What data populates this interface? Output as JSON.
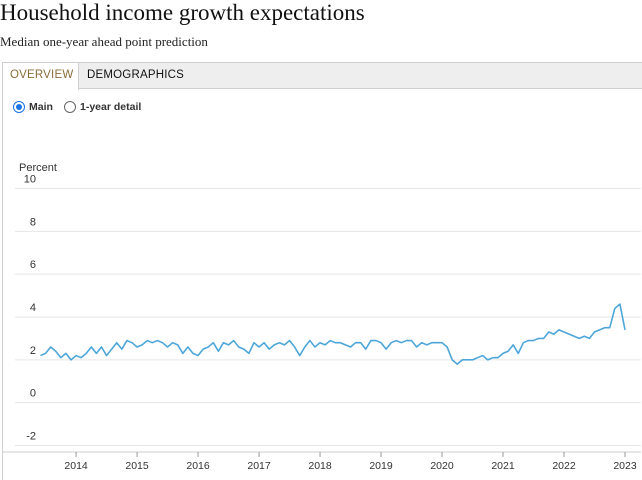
{
  "header": {
    "title": "Household income growth expectations",
    "subtitle": "Median one-year ahead point prediction"
  },
  "tabs": [
    {
      "label": "OVERVIEW"
    },
    {
      "label": "DEMOGRAPHICS"
    }
  ],
  "view_options": [
    {
      "label": "Main",
      "selected": true
    },
    {
      "label": "1-year detail",
      "selected": false
    }
  ],
  "colors": {
    "line": "#4da6d9",
    "grid": "#e6e6e6",
    "active_tab_text": "#8a6d3b",
    "radio_selected": "#1a73e8"
  },
  "chart_data": {
    "type": "line",
    "ylabel": "Percent",
    "ylim": [
      -2,
      10
    ],
    "yticks": [
      10,
      8,
      6,
      4,
      2,
      0,
      -2
    ],
    "xlim": [
      "2013-06",
      "2023-01"
    ],
    "xticks": [
      "2014",
      "2015",
      "2016",
      "2017",
      "2018",
      "2019",
      "2020",
      "2021",
      "2022",
      "2023"
    ],
    "grid": true,
    "legend": "none",
    "series": [
      {
        "x": [
          "2013-06",
          "2013-07",
          "2013-08",
          "2013-09",
          "2013-10",
          "2013-11",
          "2013-12",
          "2014-01",
          "2014-02",
          "2014-03",
          "2014-04",
          "2014-05",
          "2014-06",
          "2014-07",
          "2014-08",
          "2014-09",
          "2014-10",
          "2014-11",
          "2014-12",
          "2015-01",
          "2015-02",
          "2015-03",
          "2015-04",
          "2015-05",
          "2015-06",
          "2015-07",
          "2015-08",
          "2015-09",
          "2015-10",
          "2015-11",
          "2015-12",
          "2016-01",
          "2016-02",
          "2016-03",
          "2016-04",
          "2016-05",
          "2016-06",
          "2016-07",
          "2016-08",
          "2016-09",
          "2016-10",
          "2016-11",
          "2016-12",
          "2017-01",
          "2017-02",
          "2017-03",
          "2017-04",
          "2017-05",
          "2017-06",
          "2017-07",
          "2017-08",
          "2017-09",
          "2017-10",
          "2017-11",
          "2017-12",
          "2018-01",
          "2018-02",
          "2018-03",
          "2018-04",
          "2018-05",
          "2018-06",
          "2018-07",
          "2018-08",
          "2018-09",
          "2018-10",
          "2018-11",
          "2018-12",
          "2019-01",
          "2019-02",
          "2019-03",
          "2019-04",
          "2019-05",
          "2019-06",
          "2019-07",
          "2019-08",
          "2019-09",
          "2019-10",
          "2019-11",
          "2019-12",
          "2020-01",
          "2020-02",
          "2020-03",
          "2020-04",
          "2020-05",
          "2020-06",
          "2020-07",
          "2020-08",
          "2020-09",
          "2020-10",
          "2020-11",
          "2020-12",
          "2021-01",
          "2021-02",
          "2021-03",
          "2021-04",
          "2021-05",
          "2021-06",
          "2021-07",
          "2021-08",
          "2021-09",
          "2021-10",
          "2021-11",
          "2021-12",
          "2022-01",
          "2022-02",
          "2022-03",
          "2022-04",
          "2022-05",
          "2022-06",
          "2022-07",
          "2022-08",
          "2022-09",
          "2022-10",
          "2022-11",
          "2022-12",
          "2023-01"
        ],
        "values": [
          2.2,
          2.3,
          2.6,
          2.4,
          2.1,
          2.3,
          2.0,
          2.2,
          2.1,
          2.3,
          2.6,
          2.3,
          2.6,
          2.2,
          2.5,
          2.8,
          2.5,
          2.9,
          2.8,
          2.6,
          2.7,
          2.9,
          2.8,
          2.9,
          2.8,
          2.6,
          2.8,
          2.7,
          2.3,
          2.6,
          2.3,
          2.2,
          2.5,
          2.6,
          2.8,
          2.4,
          2.8,
          2.7,
          2.9,
          2.6,
          2.5,
          2.3,
          2.8,
          2.6,
          2.8,
          2.5,
          2.7,
          2.8,
          2.7,
          2.9,
          2.6,
          2.2,
          2.6,
          2.9,
          2.6,
          2.8,
          2.7,
          2.9,
          2.8,
          2.8,
          2.7,
          2.6,
          2.8,
          2.8,
          2.5,
          2.9,
          2.9,
          2.8,
          2.5,
          2.8,
          2.9,
          2.8,
          2.9,
          2.9,
          2.6,
          2.8,
          2.7,
          2.8,
          2.8,
          2.8,
          2.6,
          2.0,
          1.8,
          2.0,
          2.0,
          2.0,
          2.1,
          2.2,
          2.0,
          2.1,
          2.1,
          2.3,
          2.4,
          2.7,
          2.3,
          2.8,
          2.9,
          2.9,
          3.0,
          3.0,
          3.3,
          3.2,
          3.4,
          3.3,
          3.2,
          3.1,
          3.0,
          3.1,
          3.0,
          3.3,
          3.4,
          3.5,
          3.5,
          4.4,
          4.6,
          3.4
        ]
      }
    ]
  }
}
